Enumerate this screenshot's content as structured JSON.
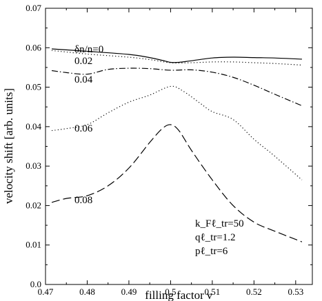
{
  "chart_data": {
    "type": "line",
    "title": "",
    "xlabel": "filling factor ν",
    "ylabel": "velocity shift [arb. units]",
    "xlim": [
      0.47,
      0.534
    ],
    "ylim": [
      0.0,
      0.07
    ],
    "grid": false,
    "x_ticks": [
      "0.47",
      "0.48",
      "0.49",
      "0.5",
      "0.51",
      "0.52",
      "0.53"
    ],
    "y_ticks": [
      "0.0",
      "0.01",
      "0.02",
      "0.03",
      "0.04",
      "0.05",
      "0.06",
      "0.07"
    ],
    "series": [
      {
        "name": "δn/n=0",
        "dash": "solid",
        "x": [
          0.4715,
          0.48,
          0.49,
          0.495,
          0.498,
          0.5,
          0.502,
          0.505,
          0.51,
          0.515,
          0.52,
          0.525,
          0.5315
        ],
        "y": [
          0.0597,
          0.0591,
          0.0583,
          0.0575,
          0.0568,
          0.0563,
          0.0563,
          0.0567,
          0.0574,
          0.0576,
          0.0575,
          0.0574,
          0.0571
        ]
      },
      {
        "name": "0.02",
        "dash": "dotted",
        "x": [
          0.4715,
          0.48,
          0.49,
          0.495,
          0.5,
          0.505,
          0.51,
          0.515,
          0.52,
          0.525,
          0.5315
        ],
        "y": [
          0.0593,
          0.0584,
          0.0576,
          0.057,
          0.0562,
          0.0562,
          0.0564,
          0.0564,
          0.0562,
          0.056,
          0.0556
        ]
      },
      {
        "name": "0.04",
        "dash": "dashdot",
        "x": [
          0.4715,
          0.475,
          0.48,
          0.485,
          0.49,
          0.495,
          0.5,
          0.505,
          0.51,
          0.515,
          0.52,
          0.525,
          0.5315
        ],
        "y": [
          0.0542,
          0.0537,
          0.0533,
          0.0545,
          0.0548,
          0.0547,
          0.0543,
          0.0544,
          0.0538,
          0.0525,
          0.0505,
          0.0482,
          0.0453
        ]
      },
      {
        "name": "0.06",
        "dash": "dotted",
        "x": [
          0.4715,
          0.475,
          0.48,
          0.485,
          0.49,
          0.495,
          0.5,
          0.503,
          0.507,
          0.51,
          0.515,
          0.52,
          0.525,
          0.5315
        ],
        "y": [
          0.039,
          0.0395,
          0.0405,
          0.0435,
          0.0462,
          0.048,
          0.0502,
          0.049,
          0.046,
          0.0438,
          0.0418,
          0.0368,
          0.0325,
          0.0265
        ]
      },
      {
        "name": "0.08",
        "dash": "longdash",
        "x": [
          0.4715,
          0.475,
          0.48,
          0.485,
          0.49,
          0.495,
          0.498,
          0.5,
          0.502,
          0.505,
          0.51,
          0.515,
          0.52,
          0.525,
          0.5315
        ],
        "y": [
          0.0208,
          0.0218,
          0.0225,
          0.025,
          0.0295,
          0.036,
          0.0395,
          0.0405,
          0.039,
          0.034,
          0.0265,
          0.02,
          0.0158,
          0.0135,
          0.0108
        ]
      }
    ],
    "series_labels": [
      "δn/n=0",
      "0.02",
      "0.04",
      "0.06",
      "0.08"
    ],
    "annotations": [
      "k_Fℓ_tr=50",
      "qℓ_tr=1.2",
      "pℓ_tr=6"
    ]
  }
}
